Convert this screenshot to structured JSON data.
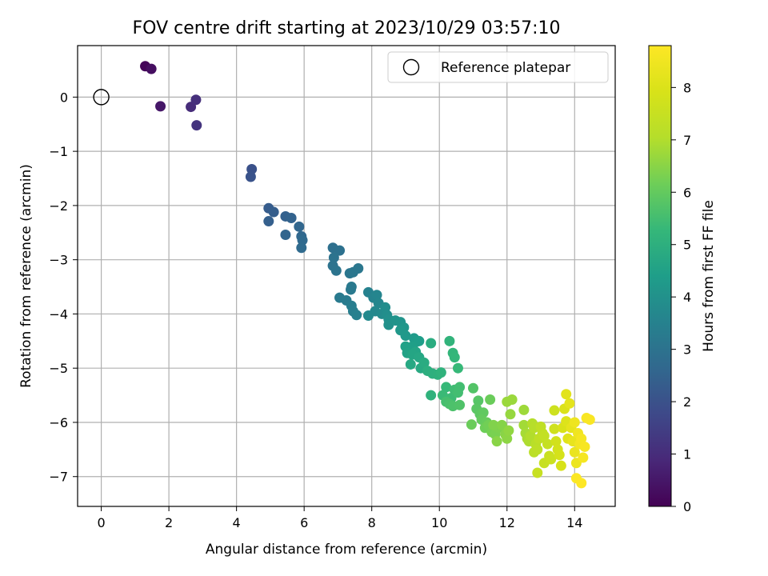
{
  "chart_data": {
    "type": "scatter",
    "title": "FOV centre drift starting at 2023/10/29 03:57:10",
    "xlabel": "Angular distance from reference (arcmin)",
    "ylabel": "Rotation from reference (arcmin)",
    "xlim": [
      -0.7,
      15.2
    ],
    "ylim": [
      -7.55,
      0.95
    ],
    "xticks": [
      0,
      2,
      4,
      6,
      8,
      10,
      12,
      14
    ],
    "yticks": [
      0,
      -1,
      -2,
      -3,
      -4,
      -5,
      -6,
      -7
    ],
    "grid": true,
    "legend": {
      "position": "top-right",
      "entries": [
        "Reference platepar"
      ]
    },
    "reference_point": {
      "x": 0,
      "y": 0,
      "label": "Reference platepar"
    },
    "colorbar": {
      "label": "Hours from first FF file",
      "colormap": "viridis",
      "range": [
        0,
        8.8
      ],
      "ticks": [
        0,
        1,
        2,
        3,
        4,
        5,
        6,
        7,
        8
      ]
    },
    "series": [
      {
        "points": [
          [
            1.3,
            0.57,
            0.1
          ],
          [
            1.48,
            0.52,
            0.3
          ],
          [
            1.75,
            -0.17,
            0.5
          ],
          [
            2.65,
            -0.18,
            1.0
          ],
          [
            2.8,
            -0.05,
            1.1
          ],
          [
            2.82,
            -0.52,
            1.2
          ],
          [
            4.45,
            -1.33,
            2.0
          ],
          [
            4.42,
            -1.47,
            2.05
          ],
          [
            4.95,
            -2.05,
            2.3
          ],
          [
            5.1,
            -2.12,
            2.35
          ],
          [
            4.95,
            -2.29,
            2.4
          ],
          [
            5.45,
            -2.2,
            2.45
          ],
          [
            5.62,
            -2.23,
            2.5
          ],
          [
            5.45,
            -2.54,
            2.55
          ],
          [
            5.85,
            -2.39,
            2.6
          ],
          [
            5.92,
            -2.57,
            2.65
          ],
          [
            5.95,
            -2.64,
            2.7
          ],
          [
            5.92,
            -2.78,
            2.75
          ],
          [
            6.85,
            -2.78,
            2.9
          ],
          [
            7.05,
            -2.83,
            2.95
          ],
          [
            6.88,
            -2.96,
            3.0
          ],
          [
            6.85,
            -3.11,
            3.0
          ],
          [
            6.95,
            -3.2,
            3.05
          ],
          [
            7.35,
            -3.25,
            3.1
          ],
          [
            7.45,
            -3.23,
            3.15
          ],
          [
            7.6,
            -3.16,
            3.15
          ],
          [
            7.4,
            -3.5,
            3.2
          ],
          [
            7.38,
            -3.55,
            3.2
          ],
          [
            7.05,
            -3.7,
            3.25
          ],
          [
            7.25,
            -3.75,
            3.3
          ],
          [
            7.4,
            -3.85,
            3.35
          ],
          [
            7.45,
            -3.95,
            3.4
          ],
          [
            7.55,
            -4.02,
            3.45
          ],
          [
            7.9,
            -3.6,
            3.5
          ],
          [
            8.05,
            -3.7,
            3.55
          ],
          [
            8.15,
            -3.65,
            3.6
          ],
          [
            8.2,
            -3.8,
            3.65
          ],
          [
            8.1,
            -3.95,
            3.7
          ],
          [
            7.9,
            -4.03,
            3.75
          ],
          [
            8.3,
            -4.0,
            3.8
          ],
          [
            8.4,
            -3.88,
            3.85
          ],
          [
            8.45,
            -4.02,
            3.9
          ],
          [
            8.5,
            -4.1,
            3.95
          ],
          [
            8.5,
            -4.2,
            4.0
          ],
          [
            8.7,
            -4.12,
            4.05
          ],
          [
            8.85,
            -4.15,
            4.1
          ],
          [
            8.95,
            -4.25,
            4.15
          ],
          [
            8.85,
            -4.3,
            4.2
          ],
          [
            9.0,
            -4.4,
            4.25
          ],
          [
            9.25,
            -4.45,
            4.3
          ],
          [
            9.3,
            -4.52,
            4.35
          ],
          [
            9.4,
            -4.5,
            4.4
          ],
          [
            9.2,
            -4.6,
            4.45
          ],
          [
            9.0,
            -4.6,
            4.5
          ],
          [
            9.05,
            -4.72,
            4.55
          ],
          [
            9.3,
            -4.7,
            4.6
          ],
          [
            9.2,
            -4.75,
            4.65
          ],
          [
            9.4,
            -4.8,
            4.7
          ],
          [
            9.15,
            -4.93,
            4.75
          ],
          [
            9.45,
            -5.0,
            4.8
          ],
          [
            9.55,
            -4.9,
            4.85
          ],
          [
            9.75,
            -4.54,
            4.9
          ],
          [
            9.65,
            -5.05,
            4.95
          ],
          [
            9.8,
            -5.1,
            5.0
          ],
          [
            9.95,
            -5.12,
            5.05
          ],
          [
            10.05,
            -5.08,
            5.1
          ],
          [
            9.75,
            -5.5,
            5.1
          ],
          [
            10.3,
            -4.5,
            5.15
          ],
          [
            10.4,
            -4.72,
            5.2
          ],
          [
            10.45,
            -4.8,
            5.25
          ],
          [
            10.55,
            -5.0,
            5.3
          ],
          [
            10.2,
            -5.35,
            5.3
          ],
          [
            10.1,
            -5.5,
            5.35
          ],
          [
            10.35,
            -5.55,
            5.4
          ],
          [
            10.45,
            -5.4,
            5.45
          ],
          [
            10.6,
            -5.35,
            5.5
          ],
          [
            10.55,
            -5.45,
            5.5
          ],
          [
            10.2,
            -5.62,
            5.55
          ],
          [
            10.3,
            -5.66,
            5.6
          ],
          [
            10.4,
            -5.7,
            5.65
          ],
          [
            10.6,
            -5.68,
            5.7
          ],
          [
            11.0,
            -5.37,
            5.75
          ],
          [
            11.15,
            -5.6,
            5.8
          ],
          [
            11.1,
            -5.75,
            5.85
          ],
          [
            11.2,
            -5.85,
            5.9
          ],
          [
            11.3,
            -5.82,
            5.95
          ],
          [
            11.25,
            -5.95,
            6.0
          ],
          [
            11.4,
            -6.0,
            6.05
          ],
          [
            11.5,
            -5.58,
            6.1
          ],
          [
            10.95,
            -6.04,
            6.1
          ],
          [
            11.35,
            -6.1,
            6.15
          ],
          [
            11.45,
            -6.05,
            6.2
          ],
          [
            11.55,
            -6.18,
            6.25
          ],
          [
            11.65,
            -6.22,
            6.3
          ],
          [
            11.75,
            -6.1,
            6.35
          ],
          [
            11.6,
            -6.05,
            6.4
          ],
          [
            11.85,
            -6.05,
            6.45
          ],
          [
            11.7,
            -6.35,
            6.5
          ],
          [
            11.95,
            -6.22,
            6.5
          ],
          [
            12.0,
            -6.3,
            6.55
          ],
          [
            12.05,
            -6.15,
            6.6
          ],
          [
            12.1,
            -5.85,
            6.65
          ],
          [
            12.0,
            -5.62,
            6.7
          ],
          [
            12.15,
            -5.58,
            6.7
          ],
          [
            12.5,
            -5.77,
            6.75
          ],
          [
            12.5,
            -6.05,
            6.8
          ],
          [
            12.55,
            -6.2,
            6.85
          ],
          [
            12.6,
            -6.3,
            6.9
          ],
          [
            12.65,
            -6.35,
            6.95
          ],
          [
            12.7,
            -6.25,
            7.0
          ],
          [
            12.75,
            -6.02,
            7.05
          ],
          [
            12.8,
            -6.1,
            7.1
          ],
          [
            12.85,
            -6.4,
            7.15
          ],
          [
            12.8,
            -6.55,
            7.2
          ],
          [
            12.9,
            -6.5,
            7.25
          ],
          [
            12.95,
            -6.3,
            7.3
          ],
          [
            13.0,
            -6.08,
            7.3
          ],
          [
            13.05,
            -6.2,
            7.35
          ],
          [
            13.1,
            -6.25,
            7.4
          ],
          [
            13.2,
            -6.4,
            7.45
          ],
          [
            13.1,
            -6.75,
            7.5
          ],
          [
            12.9,
            -6.93,
            7.5
          ],
          [
            13.25,
            -6.62,
            7.55
          ],
          [
            13.3,
            -6.68,
            7.6
          ],
          [
            13.4,
            -5.78,
            7.65
          ],
          [
            13.4,
            -6.12,
            7.7
          ],
          [
            13.45,
            -6.35,
            7.75
          ],
          [
            13.5,
            -6.5,
            7.8
          ],
          [
            13.55,
            -6.6,
            7.85
          ],
          [
            13.6,
            -6.8,
            7.9
          ],
          [
            13.65,
            -6.1,
            7.95
          ],
          [
            13.7,
            -5.75,
            8.0
          ],
          [
            13.75,
            -5.98,
            8.05
          ],
          [
            13.8,
            -6.3,
            8.1
          ],
          [
            13.75,
            -5.48,
            8.15
          ],
          [
            13.85,
            -5.65,
            8.2
          ],
          [
            13.9,
            -6.1,
            8.25
          ],
          [
            13.95,
            -6.35,
            8.3
          ],
          [
            14.0,
            -6.55,
            8.35
          ],
          [
            14.05,
            -6.75,
            8.4
          ],
          [
            14.0,
            -6.0,
            8.45
          ],
          [
            14.1,
            -6.2,
            8.5
          ],
          [
            14.15,
            -6.4,
            8.55
          ],
          [
            14.2,
            -6.3,
            8.6
          ],
          [
            14.25,
            -6.65,
            8.62
          ],
          [
            14.3,
            -6.45,
            8.65
          ],
          [
            14.35,
            -5.92,
            8.68
          ],
          [
            14.45,
            -5.95,
            8.7
          ],
          [
            14.05,
            -7.03,
            8.75
          ],
          [
            14.2,
            -7.12,
            8.8
          ]
        ]
      }
    ]
  }
}
